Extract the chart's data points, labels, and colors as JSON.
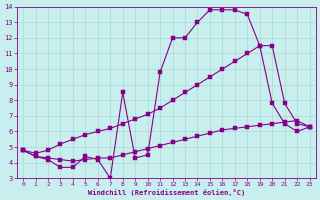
{
  "xlabel": "Windchill (Refroidissement éolien,°C)",
  "bg_color": "#c8eeee",
  "line_color": "#880088",
  "grid_color": "#a8d8d8",
  "xlim": [
    -0.5,
    23.5
  ],
  "ylim": [
    3,
    14
  ],
  "x_ticks": [
    0,
    1,
    2,
    3,
    4,
    5,
    6,
    7,
    8,
    9,
    10,
    11,
    12,
    13,
    14,
    15,
    16,
    17,
    18,
    19,
    20,
    21,
    22,
    23
  ],
  "y_ticks": [
    3,
    4,
    5,
    6,
    7,
    8,
    9,
    10,
    11,
    12,
    13,
    14
  ],
  "curve1_x": [
    0,
    1,
    2,
    3,
    4,
    5,
    6,
    7,
    8,
    9,
    10,
    11,
    12,
    13,
    14,
    15,
    16,
    17,
    18,
    19,
    20,
    21,
    22,
    23
  ],
  "curve1_y": [
    4.8,
    4.4,
    4.2,
    3.7,
    3.7,
    4.4,
    4.2,
    3.0,
    8.5,
    4.3,
    4.5,
    9.8,
    12.0,
    12.0,
    13.0,
    13.8,
    13.8,
    13.8,
    13.5,
    11.5,
    7.8,
    6.5,
    6.0,
    6.3
  ],
  "curve2_x": [
    0,
    1,
    2,
    3,
    4,
    5,
    6,
    7,
    8,
    9,
    10,
    11,
    12,
    13,
    14,
    15,
    16,
    17,
    18,
    19,
    20,
    21,
    22,
    23
  ],
  "curve2_y": [
    4.8,
    4.6,
    4.8,
    5.2,
    5.5,
    5.8,
    6.0,
    6.2,
    6.5,
    6.8,
    7.1,
    7.5,
    8.0,
    8.5,
    9.0,
    9.5,
    10.0,
    10.5,
    11.0,
    11.5,
    11.5,
    7.8,
    6.5,
    6.3
  ],
  "curve3_x": [
    0,
    1,
    2,
    3,
    4,
    5,
    6,
    7,
    8,
    9,
    10,
    11,
    12,
    13,
    14,
    15,
    16,
    17,
    18,
    19,
    20,
    21,
    22,
    23
  ],
  "curve3_y": [
    4.8,
    4.4,
    4.3,
    4.2,
    4.1,
    4.2,
    4.3,
    4.3,
    4.5,
    4.7,
    4.9,
    5.1,
    5.3,
    5.5,
    5.7,
    5.9,
    6.1,
    6.2,
    6.3,
    6.4,
    6.5,
    6.6,
    6.7,
    6.3
  ]
}
